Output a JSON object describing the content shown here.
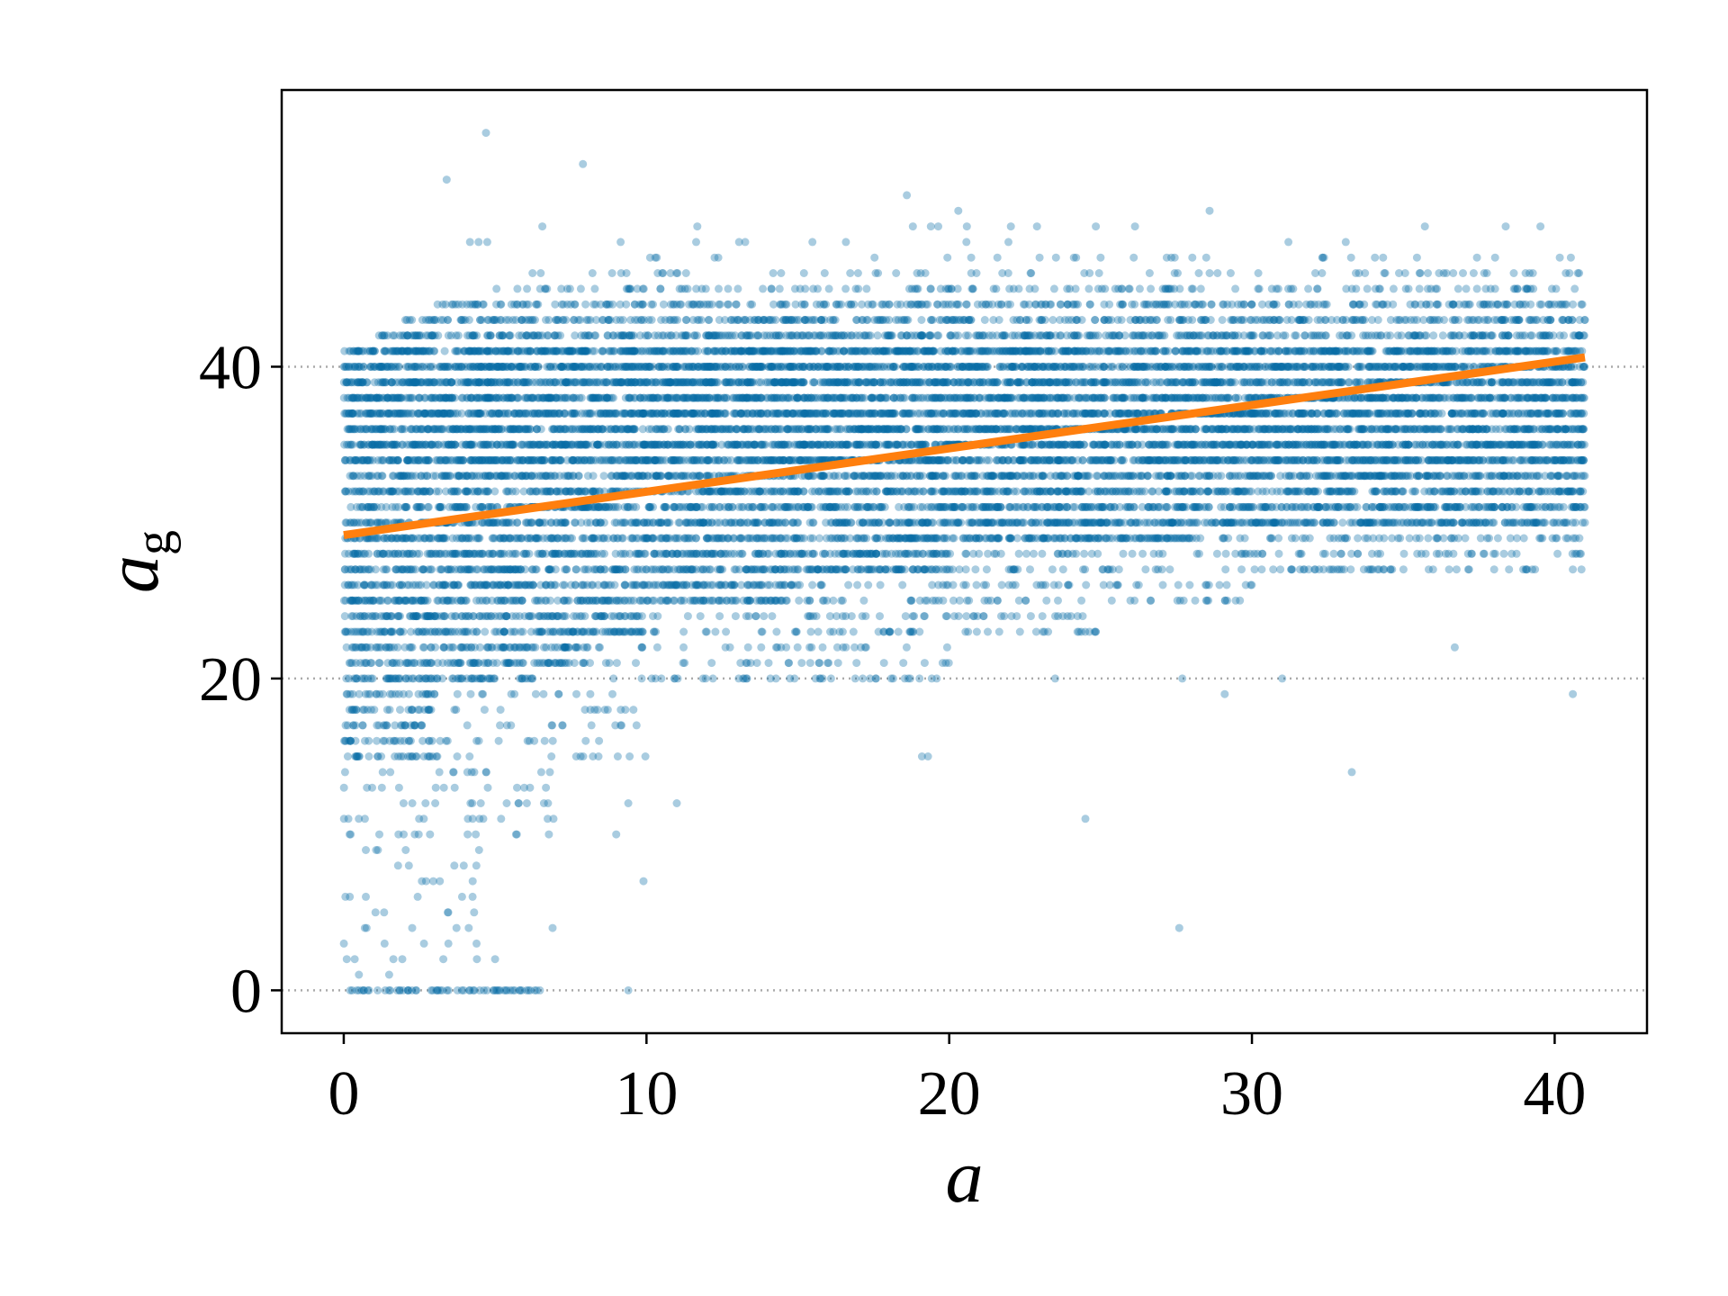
{
  "chart_data": {
    "type": "scatter",
    "title": "",
    "xlabel": "a",
    "ylabel": "a",
    "ylabel_subscript": "g",
    "xlim": [
      -2.05,
      43.05
    ],
    "ylim": [
      -2.75,
      57.75
    ],
    "xticks": [
      0,
      10,
      20,
      30,
      40
    ],
    "xtick_labels": [
      "0",
      "10",
      "20",
      "30",
      "40"
    ],
    "yticks": [
      0,
      20,
      40
    ],
    "ytick_labels": [
      "0",
      "20",
      "40"
    ],
    "grid": {
      "axis": "y",
      "style": "dotted",
      "color": "#aaaaaa"
    },
    "colors": {
      "points": "#0a6ea6",
      "fit_line": "#ff7f0e"
    },
    "point_alpha": 0.35,
    "y_values_are_integers": true,
    "density_bands_note_fields": [
      "y_min",
      "y_max",
      "x_from",
      "x_to",
      "points_per_unit_x"
    ],
    "density_bands": [
      [
        0,
        0,
        0.2,
        6.5,
        10
      ],
      [
        2,
        9,
        0,
        4.5,
        1.2
      ],
      [
        10,
        14,
        0,
        7,
        1.8
      ],
      [
        15,
        19,
        0,
        3,
        9
      ],
      [
        15,
        19,
        3,
        10,
        1.8
      ],
      [
        20,
        20,
        0,
        6,
        12
      ],
      [
        20,
        20,
        6,
        20,
        3
      ],
      [
        21,
        22,
        0,
        8,
        12
      ],
      [
        21,
        22,
        8,
        20,
        2.5
      ],
      [
        23,
        24,
        0,
        10,
        14
      ],
      [
        23,
        24,
        10,
        25,
        3.5
      ],
      [
        25,
        26,
        0,
        15,
        14
      ],
      [
        25,
        26,
        15,
        30,
        3.5
      ],
      [
        27,
        28,
        0,
        20,
        15
      ],
      [
        27,
        28,
        20,
        41,
        4
      ],
      [
        29,
        29,
        0,
        28,
        16
      ],
      [
        29,
        29,
        28,
        41,
        5
      ],
      [
        30,
        33,
        0,
        41,
        16
      ],
      [
        34,
        41,
        0,
        41,
        22
      ],
      [
        42,
        42,
        1,
        41,
        12
      ],
      [
        43,
        43,
        2,
        41,
        10
      ],
      [
        44,
        44,
        3,
        41,
        8
      ],
      [
        45,
        45,
        5,
        41,
        4
      ],
      [
        46,
        46,
        6,
        41,
        2
      ],
      [
        47,
        47,
        10,
        41,
        1
      ],
      [
        48,
        49,
        4,
        41,
        0.35
      ]
    ],
    "outlier_points": [
      [
        4.7,
        55
      ],
      [
        3.4,
        52
      ],
      [
        7.9,
        53
      ],
      [
        18.6,
        51
      ],
      [
        20.3,
        50
      ],
      [
        28.6,
        50
      ],
      [
        24.5,
        11
      ],
      [
        27.6,
        4
      ],
      [
        33.3,
        14
      ],
      [
        9.9,
        7
      ],
      [
        9.4,
        0
      ],
      [
        19.1,
        15
      ],
      [
        19.3,
        15
      ],
      [
        40.6,
        19
      ],
      [
        36.7,
        22
      ],
      [
        29.1,
        19
      ],
      [
        11.0,
        12
      ],
      [
        6.9,
        4
      ],
      [
        5.0,
        2
      ],
      [
        0.5,
        1
      ],
      [
        0.1,
        2
      ],
      [
        1.5,
        1
      ],
      [
        0.2,
        6
      ],
      [
        9.0,
        10
      ],
      [
        9.4,
        12
      ],
      [
        31.0,
        20
      ],
      [
        27.7,
        20
      ],
      [
        23.5,
        20
      ]
    ],
    "fit_line": {
      "x": [
        0,
        41
      ],
      "y": [
        29.2,
        40.6
      ]
    }
  }
}
